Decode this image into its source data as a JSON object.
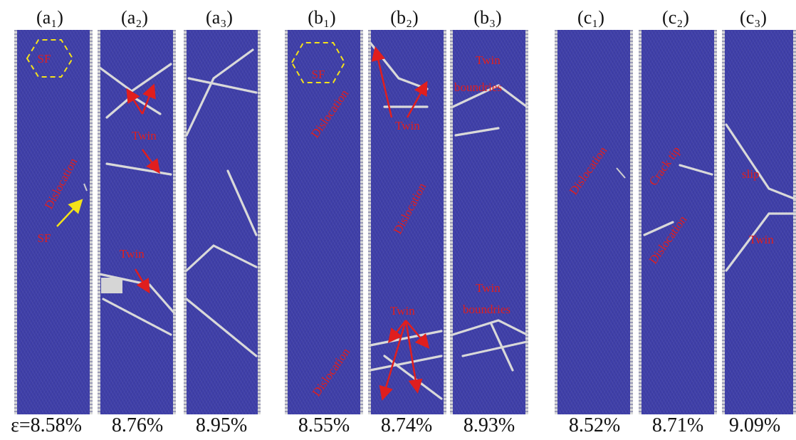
{
  "panels": [
    {
      "label": "(a₁)",
      "strain": "ε=8.58%"
    },
    {
      "label": "(a₂)",
      "strain": "8.76%"
    },
    {
      "label": "(a₃)",
      "strain": "8.95%"
    },
    {
      "label": "(b₁)",
      "strain": "8.55%"
    },
    {
      "label": "(b₂)",
      "strain": "8.74%"
    },
    {
      "label": "(b₃)",
      "strain": "8.93%"
    },
    {
      "label": "(c₁)",
      "strain": "8.52%"
    },
    {
      "label": "(c₂)",
      "strain": "8.71%"
    },
    {
      "label": "(c₃)",
      "strain": "9.09%"
    }
  ],
  "annotations": {
    "sf": "SF",
    "dislocation": "Dislocation",
    "twin": "Twin",
    "twin_boundries_1": "Twin",
    "twin_boundries_2": "boundries",
    "crack_tip": "Crack tip",
    "slip": "slip"
  },
  "colors": {
    "atoms_fcc": "#3f3fa8",
    "defect_atoms": "#d6d6d6",
    "annotation_red": "#e01e1e",
    "annotation_yellow": "#f4e21a"
  }
}
